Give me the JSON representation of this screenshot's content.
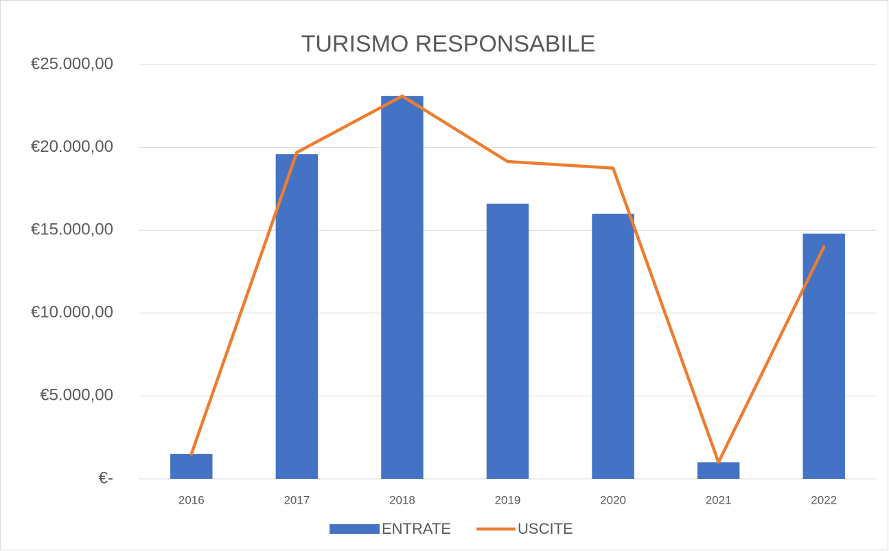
{
  "chart_data": {
    "type": "bar_line",
    "title": "TURISMO RESPONSABILE",
    "categories": [
      "2016",
      "2017",
      "2018",
      "2019",
      "2020",
      "2021",
      "2022"
    ],
    "series": [
      {
        "name": "ENTRATE",
        "type": "bar",
        "color": "#4472c4",
        "values": [
          1500,
          19600,
          23100,
          16600,
          16000,
          1000,
          14800
        ]
      },
      {
        "name": "USCITE",
        "type": "line",
        "color": "#ed7d31",
        "values": [
          1500,
          19700,
          23100,
          19150,
          18750,
          1000,
          14000
        ]
      }
    ],
    "ylim": [
      0,
      25000
    ],
    "yticks": [
      {
        "value": 0,
        "label": "€-"
      },
      {
        "value": 5000,
        "label": "€5.000,00"
      },
      {
        "value": 10000,
        "label": "€10.000,00"
      },
      {
        "value": 15000,
        "label": "€15.000,00"
      },
      {
        "value": 20000,
        "label": "€20.000,00"
      },
      {
        "value": 25000,
        "label": "€25.000,00"
      }
    ],
    "grid": true,
    "legend": "bottom"
  }
}
